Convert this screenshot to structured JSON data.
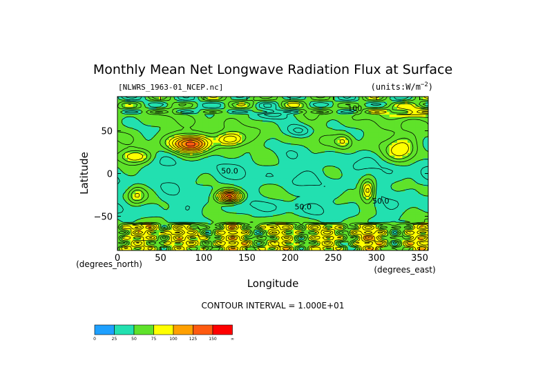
{
  "chart_data": {
    "type": "heatmap",
    "title": "Monthly Mean Net Longwave Radiation Flux at Surface",
    "file_label": "[NLWRS_1963-01_NCEP.nc]",
    "units_label": "(units:W/m^-2)",
    "xlabel": "Longitude",
    "ylabel": "Latitude",
    "x_units_label": "(degrees_east)",
    "y_units_label": "(degrees_north)",
    "xlim": [
      0,
      360
    ],
    "ylim": [
      -90,
      90
    ],
    "x_ticks": [
      0,
      50,
      100,
      150,
      200,
      250,
      300,
      350
    ],
    "y_ticks": [
      50,
      0,
      -50
    ],
    "y_tick_labels": [
      "50",
      "0",
      "−50"
    ],
    "contour_interval_label": "CONTOUR INTERVAL = 1.000E+01",
    "contour_labels": [
      {
        "text": "50.0",
        "lon": 130,
        "lat": 0
      },
      {
        "text": "50.0",
        "lon": 215,
        "lat": -42
      },
      {
        "text": "50.0",
        "lon": 305,
        "lat": -35
      },
      {
        "text": "100",
        "lon": 275,
        "lat": 73
      }
    ],
    "colorbar": {
      "tick_labels": [
        "0",
        "25",
        "50",
        "75",
        "100",
        "125",
        "150",
        "∞"
      ],
      "colors": [
        "#1ea0ff",
        "#22e0b0",
        "#5fe22a",
        "#ffff00",
        "#ffa000",
        "#ff5a10",
        "#ff0000"
      ]
    },
    "grid": false,
    "legend": "bottom-left"
  }
}
